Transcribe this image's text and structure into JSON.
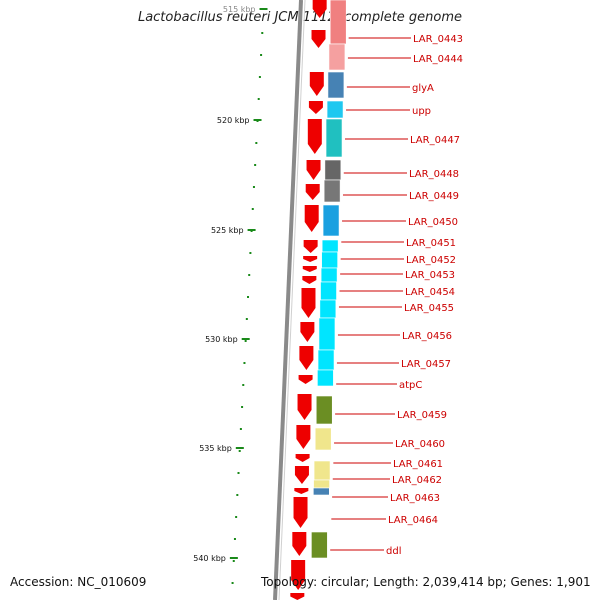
{
  "title": "Lactobacillus reuteri JCM 1112, complete genome",
  "footer": {
    "accession": "Accession: NC_010609",
    "topology": "Topology: circular; Length: 2,039,414 bp; Genes: 1,901"
  },
  "colors": {
    "gene_arrow": "#ee0000",
    "label": "#cc0000",
    "leader_line": "#cc0000",
    "backbone": "#8a8a8a",
    "tick": "#1a8a1a"
  },
  "scale": {
    "ticks_kbp": [
      515,
      520,
      525,
      530,
      535,
      540
    ],
    "tick_labels": [
      "515 kbp",
      "520 kbp",
      "525 kbp",
      "530 kbp",
      "535 kbp",
      "540 kbp"
    ]
  },
  "features": [
    {
      "label": "LAR_0443",
      "cog_color": "#f08080"
    },
    {
      "label": "LAR_0444",
      "cog_color": "#f5a0a0"
    },
    {
      "label": "glyA",
      "cog_color": "#4682b4"
    },
    {
      "label": "upp",
      "cog_color": "#1ec8f0"
    },
    {
      "label": "LAR_0447",
      "cog_color": "#20c0c0"
    },
    {
      "label": "LAR_0448",
      "cog_color": "#666666"
    },
    {
      "label": "LAR_0449",
      "cog_color": "#777777"
    },
    {
      "label": "LAR_0450",
      "cog_color": "#1aa0e0"
    },
    {
      "label": "LAR_0451",
      "cog_color": "#00e5ff"
    },
    {
      "label": "LAR_0452",
      "cog_color": "#00e5ff"
    },
    {
      "label": "LAR_0453",
      "cog_color": "#00e5ff"
    },
    {
      "label": "LAR_0454",
      "cog_color": "#00e5ff"
    },
    {
      "label": "LAR_0455",
      "cog_color": "#00e5ff"
    },
    {
      "label": "LAR_0456",
      "cog_color": "#00e5ff"
    },
    {
      "label": "LAR_0457",
      "cog_color": "#00e5ff"
    },
    {
      "label": "atpC",
      "cog_color": "#00e5ff"
    },
    {
      "label": "LAR_0459",
      "cog_color": "#6b8e23"
    },
    {
      "label": "LAR_0460",
      "cog_color": "#f0e68c"
    },
    {
      "label": "LAR_0461",
      "cog_color": "#f0e68c"
    },
    {
      "label": "LAR_0462",
      "cog_color": "#f0e68c"
    },
    {
      "label": "LAR_0463",
      "cog_color": "#4682b4"
    },
    {
      "label": "LAR_0464",
      "cog_color": ""
    },
    {
      "label": "ddl",
      "cog_color": "#6b8e23"
    }
  ]
}
